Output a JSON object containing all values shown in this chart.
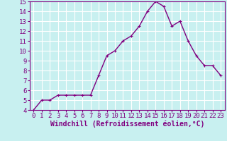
{
  "x": [
    0,
    1,
    2,
    3,
    4,
    5,
    6,
    7,
    8,
    9,
    10,
    11,
    12,
    13,
    14,
    15,
    16,
    17,
    18,
    19,
    20,
    21,
    22,
    23
  ],
  "y": [
    4.0,
    5.0,
    5.0,
    5.5,
    5.5,
    5.5,
    5.5,
    5.5,
    7.5,
    9.5,
    10.0,
    11.0,
    11.5,
    12.5,
    14.0,
    15.0,
    14.5,
    12.5,
    13.0,
    11.0,
    9.5,
    8.5,
    8.5,
    7.5
  ],
  "xlabel": "Windchill (Refroidissement éolien,°C)",
  "ylim": [
    4,
    15
  ],
  "xlim": [
    -0.5,
    23.5
  ],
  "yticks": [
    4,
    5,
    6,
    7,
    8,
    9,
    10,
    11,
    12,
    13,
    14,
    15
  ],
  "xticks": [
    0,
    1,
    2,
    3,
    4,
    5,
    6,
    7,
    8,
    9,
    10,
    11,
    12,
    13,
    14,
    15,
    16,
    17,
    18,
    19,
    20,
    21,
    22,
    23
  ],
  "line_color": "#800080",
  "marker": "+",
  "background_color": "#c8f0f0",
  "grid_color": "#ffffff",
  "xlabel_fontsize": 7,
  "tick_fontsize": 6.5,
  "linewidth": 1.0,
  "markersize": 3,
  "markeredgewidth": 0.8
}
